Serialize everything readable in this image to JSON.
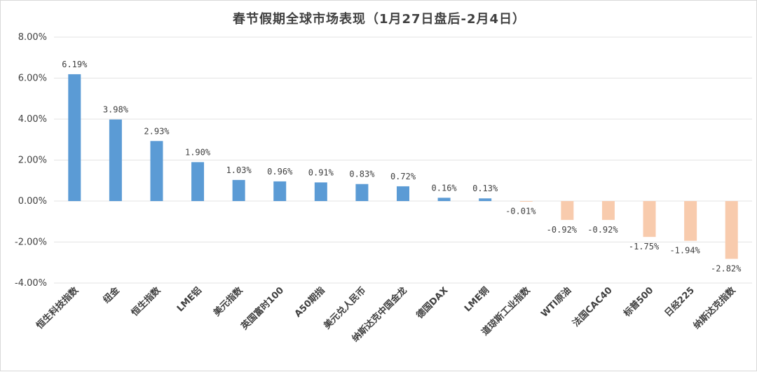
{
  "chart_data": {
    "type": "bar",
    "title": "春节假期全球市场表现（1月27日盘后-2月4日）",
    "xlabel": "",
    "ylabel": "",
    "ylim": [
      -4,
      8
    ],
    "yticks": [
      "8.00%",
      "6.00%",
      "4.00%",
      "2.00%",
      "0.00%",
      "-2.00%",
      "-4.00%"
    ],
    "ytick_values": [
      8,
      6,
      4,
      2,
      0,
      -2,
      -4
    ],
    "grid": true,
    "legend": "none",
    "categories": [
      "恒生科技指数",
      "纽金",
      "恒生指数",
      "LME铝",
      "美元指数",
      "英国富时100",
      "A50期指",
      "美元兑人民币",
      "纳斯达克中国金龙",
      "德国DAX",
      "LME铜",
      "道琼斯工业指数",
      "WTI原油",
      "法国CAC40",
      "标普500",
      "日经225",
      "纳斯达克指数"
    ],
    "values": [
      6.19,
      3.98,
      2.93,
      1.9,
      1.03,
      0.96,
      0.91,
      0.83,
      0.72,
      0.16,
      0.13,
      -0.01,
      -0.92,
      -0.92,
      -1.75,
      -1.94,
      -2.82
    ],
    "data_labels": [
      "6.19%",
      "3.98%",
      "2.93%",
      "1.90%",
      "1.03%",
      "0.96%",
      "0.91%",
      "0.83%",
      "0.72%",
      "0.16%",
      "0.13%",
      "-0.01%",
      "-0.92%",
      "-0.92%",
      "-1.75%",
      "-1.94%",
      "-2.82%"
    ],
    "colors": {
      "positive": "#5b9bd5",
      "negative": "#f8cbad"
    }
  }
}
